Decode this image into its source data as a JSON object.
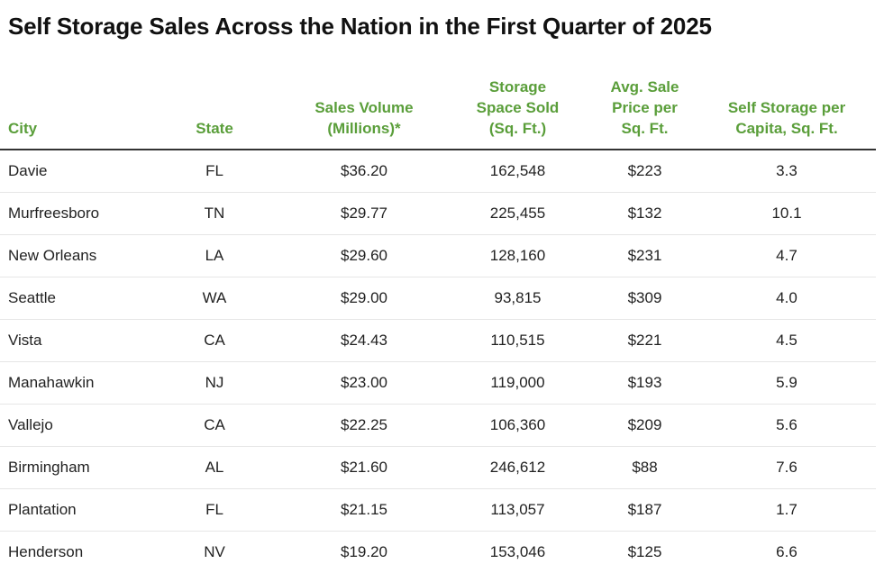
{
  "chart_data": {
    "type": "table",
    "title": "Self Storage Sales Across the Nation in the First Quarter of 2025",
    "columns": [
      "City",
      "State",
      "Sales Volume (Millions)*",
      "Storage Space Sold (Sq. Ft.)",
      "Avg. Sale Price per Sq. Ft.",
      "Self Storage per Capita, Sq. Ft."
    ],
    "rows": [
      [
        "Davie",
        "FL",
        "$36.20",
        "162,548",
        "$223",
        "3.3"
      ],
      [
        "Murfreesboro",
        "TN",
        "$29.77",
        "225,455",
        "$132",
        "10.1"
      ],
      [
        "New Orleans",
        "LA",
        "$29.60",
        "128,160",
        "$231",
        "4.7"
      ],
      [
        "Seattle",
        "WA",
        "$29.00",
        "93,815",
        "$309",
        "4.0"
      ],
      [
        "Vista",
        "CA",
        "$24.43",
        "110,515",
        "$221",
        "4.5"
      ],
      [
        "Manahawkin",
        "NJ",
        "$23.00",
        "119,000",
        "$193",
        "5.9"
      ],
      [
        "Vallejo",
        "CA",
        "$22.25",
        "106,360",
        "$209",
        "5.6"
      ],
      [
        "Birmingham",
        "AL",
        "$21.60",
        "246,612",
        "$88",
        "7.6"
      ],
      [
        "Plantation",
        "FL",
        "$21.15",
        "113,057",
        "$187",
        "1.7"
      ],
      [
        "Henderson",
        "NV",
        "$19.20",
        "153,046",
        "$125",
        "6.6"
      ]
    ],
    "header_color": "#5a9e3a"
  }
}
